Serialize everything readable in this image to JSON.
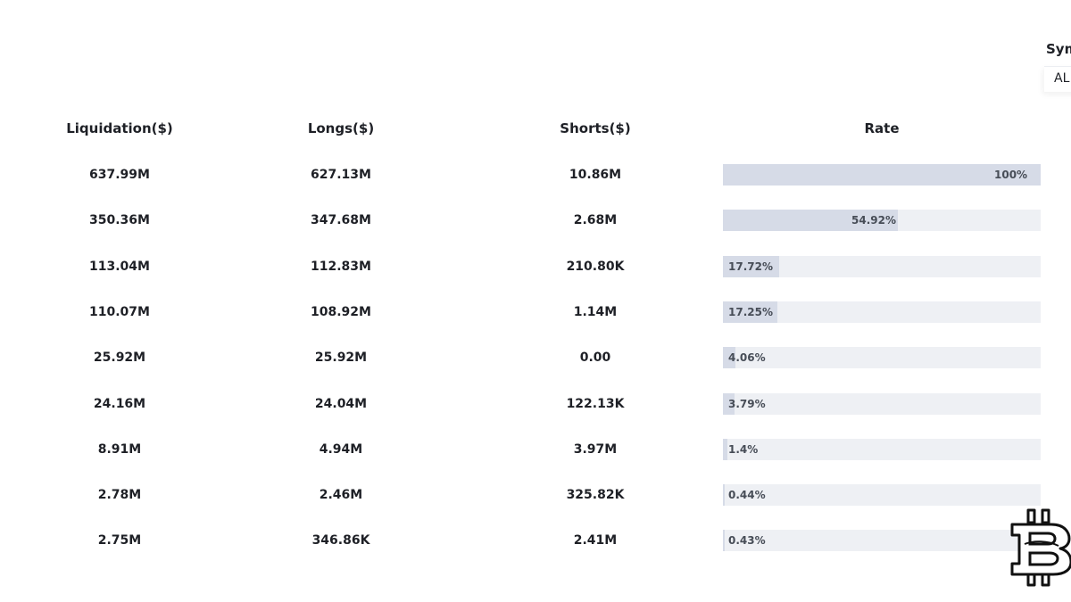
{
  "symbol": {
    "label": "Sym",
    "value": "AL"
  },
  "columns": {
    "liquidation": "Liquidation($)",
    "longs": "Longs($)",
    "shorts": "Shorts($)",
    "rate": "Rate"
  },
  "rows": [
    {
      "liquidation": "637.99M",
      "longs": "627.13M",
      "shorts": "10.86M",
      "rate_label": "100%",
      "rate": 1.0
    },
    {
      "liquidation": "350.36M",
      "longs": "347.68M",
      "shorts": "2.68M",
      "rate_label": "54.92%",
      "rate": 0.5492
    },
    {
      "liquidation": "113.04M",
      "longs": "112.83M",
      "shorts": "210.80K",
      "rate_label": "17.72%",
      "rate": 0.1772
    },
    {
      "liquidation": "110.07M",
      "longs": "108.92M",
      "shorts": "1.14M",
      "rate_label": "17.25%",
      "rate": 0.1725
    },
    {
      "liquidation": "25.92M",
      "longs": "25.92M",
      "shorts": "0.00",
      "rate_label": "4.06%",
      "rate": 0.0406
    },
    {
      "liquidation": "24.16M",
      "longs": "24.04M",
      "shorts": "122.13K",
      "rate_label": "3.79%",
      "rate": 0.0379
    },
    {
      "liquidation": "8.91M",
      "longs": "4.94M",
      "shorts": "3.97M",
      "rate_label": "1.4%",
      "rate": 0.014
    },
    {
      "liquidation": "2.78M",
      "longs": "2.46M",
      "shorts": "325.82K",
      "rate_label": "0.44%",
      "rate": 0.0044
    },
    {
      "liquidation": "2.75M",
      "longs": "346.86K",
      "shorts": "2.41M",
      "rate_label": "0.43%",
      "rate": 0.0043
    }
  ],
  "colors": {
    "bar_track": "#eef0f4",
    "bar_fill": "#d6dbe7",
    "text": "#1e2026"
  },
  "watermark_icon": "bitcoin-dollar-logo-icon"
}
